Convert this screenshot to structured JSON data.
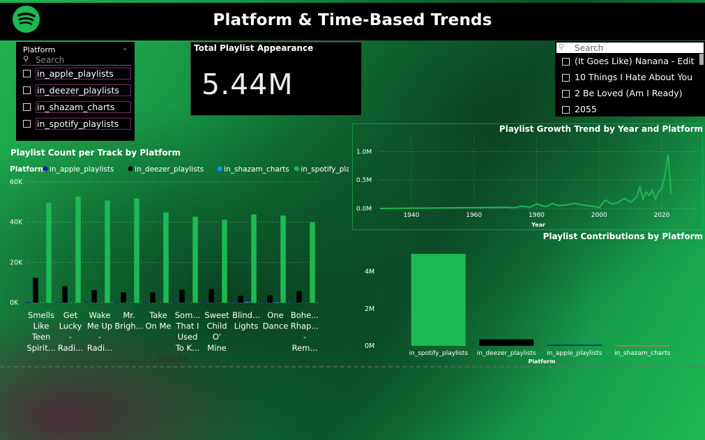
{
  "header": {
    "title": "Platform & Time-Based Trends",
    "logo_icon": "spotify-icon"
  },
  "platform_slicer": {
    "label": "Platform",
    "search_placeholder": "Search",
    "items": [
      {
        "label": "in_apple_playlists"
      },
      {
        "label": "in_deezer_playlists"
      },
      {
        "label": "in_shazam_charts"
      },
      {
        "label": "in_spotify_playlists"
      }
    ]
  },
  "kpi_card": {
    "title": "Total Playlist Appearance",
    "value": "5.44M"
  },
  "track_slicer": {
    "search_placeholder": "Search",
    "items": [
      {
        "label": "(It Goes Like) Nanana - Edit"
      },
      {
        "label": "10 Things I Hate About You"
      },
      {
        "label": "2 Be Loved (Am I Ready)"
      },
      {
        "label": "2055"
      }
    ]
  },
  "colors": {
    "apple": "#12239e",
    "deezer": "#000000",
    "shazam": "#118dff",
    "spotify": "#1db954",
    "background_accent": "#1db954"
  },
  "chart_data": [
    {
      "id": "bar_chart",
      "type": "bar",
      "title": "Playlist Count per Track by Platform",
      "legend_title": "Platform",
      "xlabel": "Tracks",
      "ylim": [
        0,
        60000
      ],
      "yticks": [
        "0K",
        "20K",
        "40K",
        "60K"
      ],
      "ytick_values": [
        0,
        20000,
        40000,
        60000
      ],
      "categories": [
        [
          "Smells",
          "Like",
          "Teen",
          "Spirit..."
        ],
        [
          "Get",
          "Lucky",
          "-",
          "Radi..."
        ],
        [
          "Wake",
          "Me Up",
          "-",
          "Radi..."
        ],
        [
          "Mr.",
          "Brigh..."
        ],
        [
          "Take",
          "On Me"
        ],
        [
          "Som...",
          "That I",
          "Used",
          "To K..."
        ],
        [
          "Sweet",
          "Child",
          "O'",
          "Mine"
        ],
        [
          "Blind...",
          "Lights"
        ],
        [
          "One",
          "Dance"
        ],
        [
          "Bohe...",
          "Rhap...",
          "-",
          "Rem..."
        ]
      ],
      "series": [
        {
          "name": "in_apple_playlists",
          "color": "#12239e",
          "values": [
            200,
            250,
            250,
            150,
            180,
            150,
            200,
            550,
            500,
            250
          ]
        },
        {
          "name": "in_deezer_playlists",
          "color": "#000000",
          "values": [
            12300,
            8200,
            6300,
            5100,
            5100,
            6400,
            6700,
            3400,
            3600,
            5700
          ]
        },
        {
          "name": "in_shazam_charts",
          "color": "#118dff",
          "values": [
            0,
            0,
            0,
            0,
            0,
            0,
            0,
            400,
            200,
            0
          ]
        },
        {
          "name": "in_spotify_playlists",
          "color": "#1db954",
          "values": [
            49700,
            52800,
            50800,
            51800,
            44900,
            42800,
            41200,
            43900,
            43300,
            40100
          ]
        }
      ]
    },
    {
      "id": "line_chart",
      "type": "line",
      "title": "Playlist Growth Trend by Year and Platform",
      "xlabel": "Year",
      "xlim": [
        1930,
        2024
      ],
      "ylim": [
        0,
        1200000
      ],
      "xticks": [
        1940,
        1960,
        1980,
        2000,
        2020
      ],
      "yticks": [
        "0.0M",
        "0.5M",
        "1.0M"
      ],
      "ytick_values": [
        0,
        500000,
        1000000
      ],
      "x": [
        1930,
        1940,
        1950,
        1955,
        1960,
        1965,
        1970,
        1973,
        1975,
        1978,
        1980,
        1983,
        1985,
        1987,
        1990,
        1992,
        1995,
        1997,
        1999,
        2000,
        2002,
        2004,
        2006,
        2008,
        2010,
        2012,
        2013,
        2014,
        2015,
        2016,
        2017,
        2018,
        2019,
        2020,
        2021,
        2022,
        2023
      ],
      "y": [
        0,
        5000,
        8000,
        12000,
        15000,
        18000,
        22000,
        15000,
        40000,
        25000,
        80000,
        30000,
        90000,
        50000,
        65000,
        90000,
        60000,
        45000,
        30000,
        15000,
        150000,
        80000,
        100000,
        180000,
        110000,
        200000,
        380000,
        170000,
        290000,
        230000,
        320000,
        160000,
        300000,
        350000,
        580000,
        950000,
        250000
      ],
      "series_name": "in_spotify_playlists",
      "color": "#1db954",
      "grid": true
    },
    {
      "id": "platform_bar",
      "type": "bar",
      "title": "Playlist Contributions by Platform",
      "xlabel": "Platform",
      "ylim": [
        0,
        5000000
      ],
      "yticks": [
        "0M",
        "2M",
        "4M"
      ],
      "ytick_values": [
        0,
        2000000,
        4000000
      ],
      "categories": [
        "in_spotify_playlists",
        "in_deezer_playlists",
        "in_apple_playlists",
        "in_shazam_charts"
      ],
      "values": [
        4960000,
        350000,
        60000,
        30000
      ],
      "colors": [
        "#1db954",
        "#000000",
        "#12239e",
        "#e66c37"
      ]
    }
  ]
}
